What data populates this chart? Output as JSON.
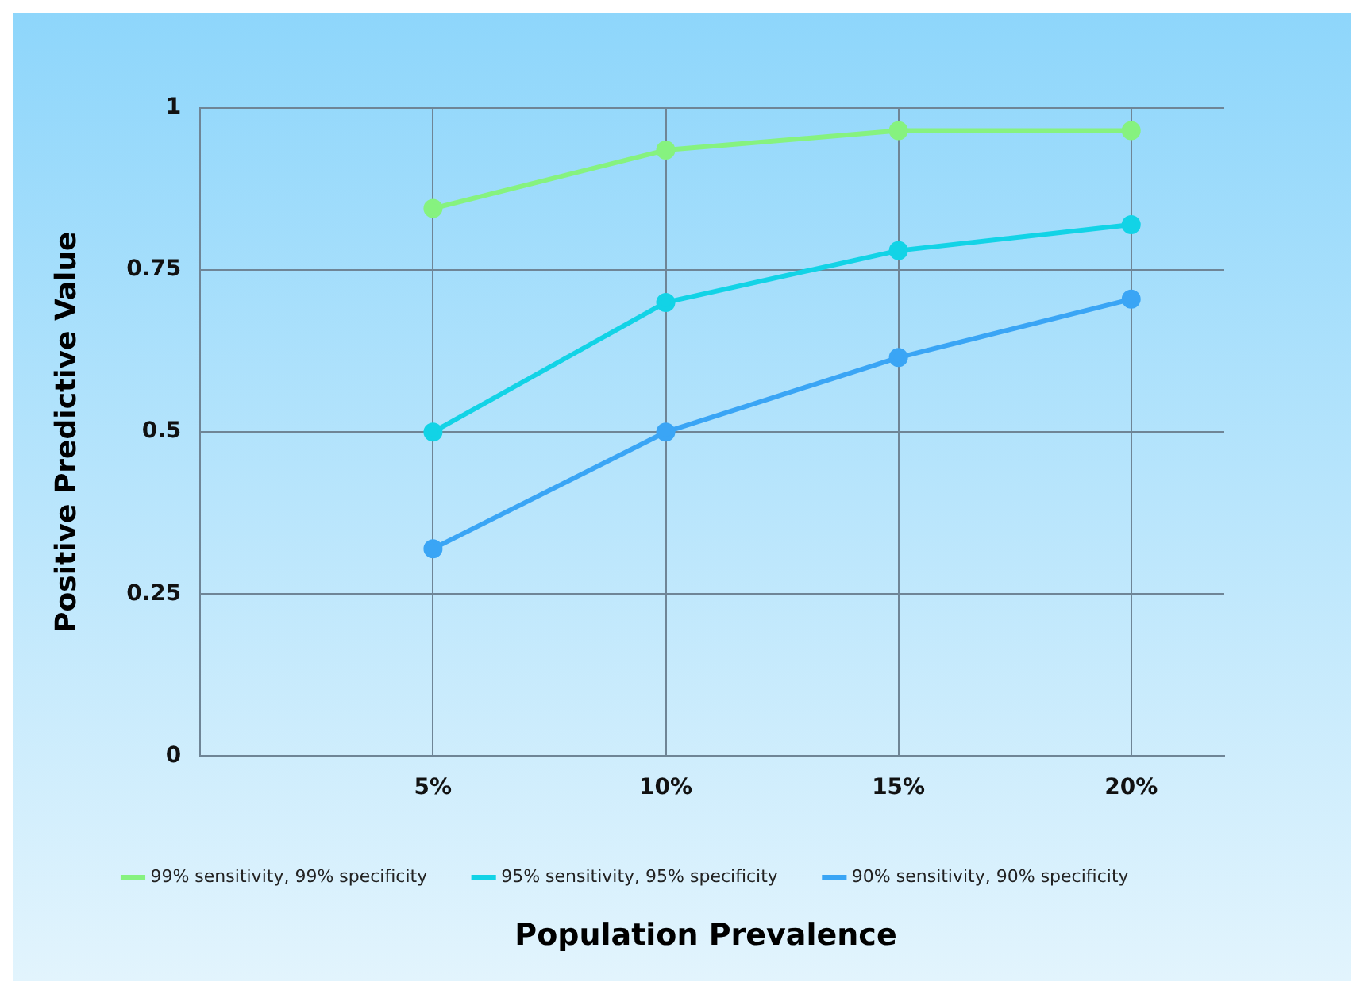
{
  "chart_data": {
    "type": "line",
    "xlabel": "Population Prevalence",
    "ylabel": "Positive Predictive Value",
    "x": [
      5,
      10,
      15,
      20
    ],
    "series": [
      {
        "name": "99% sensitivity, 99% specificity",
        "color": "#86f27f",
        "values": [
          0.845,
          0.935,
          0.965,
          0.965
        ]
      },
      {
        "name": "95% sensitivity, 95% specificity",
        "color": "#12d3e6",
        "values": [
          0.5,
          0.7,
          0.78,
          0.82
        ]
      },
      {
        "name": "90% sensitivity, 90% specificity",
        "color": "#3aa5f5",
        "values": [
          0.32,
          0.5,
          0.615,
          0.705
        ]
      }
    ],
    "xlim": [
      0,
      22
    ],
    "xticks": [
      {
        "value": 5,
        "label": "5%"
      },
      {
        "value": 10,
        "label": "10%"
      },
      {
        "value": 15,
        "label": "15%"
      },
      {
        "value": 20,
        "label": "20%"
      }
    ],
    "ylim": [
      0,
      1
    ],
    "yticks": [
      0,
      0.25,
      0.5,
      0.75,
      1
    ],
    "grid": true,
    "legend": "bottom",
    "marker": "circle",
    "line_style": "solid"
  }
}
